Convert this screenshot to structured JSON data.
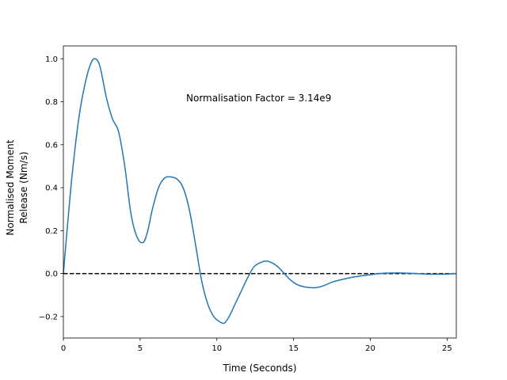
{
  "chart_data": {
    "type": "line",
    "title": "",
    "xlabel": "Time (Seconds)",
    "ylabel": "Normalised Moment Release (Nm/s)",
    "ylabel_lines": [
      "Normalised Moment",
      "Release (Nm/s)"
    ],
    "xlim": [
      0,
      25.6
    ],
    "ylim": [
      -0.3,
      1.06
    ],
    "xticks": [
      0,
      5,
      10,
      15,
      20,
      25
    ],
    "yticks": [
      -0.2,
      0.0,
      0.2,
      0.4,
      0.6,
      0.8,
      1.0
    ],
    "xtick_labels": [
      "0",
      "5",
      "10",
      "15",
      "20",
      "25"
    ],
    "ytick_labels": [
      "−0.2",
      "0.0",
      "0.2",
      "0.4",
      "0.6",
      "0.8",
      "1.0"
    ],
    "grid": false,
    "legend": "none",
    "annotation": "Normalisation Factor = 3.14e9",
    "reference_line": {
      "y": 0,
      "style": "dashed",
      "color": "#000000"
    },
    "series": [
      {
        "color": "#1f77b4",
        "x": [
          0,
          0.3,
          0.6,
          1.0,
          1.4,
          1.8,
          2.1,
          2.4,
          2.8,
          3.2,
          3.6,
          4.0,
          4.4,
          4.8,
          5.2,
          5.5,
          5.8,
          6.2,
          6.6,
          7.0,
          7.4,
          7.8,
          8.2,
          8.6,
          9.0,
          9.4,
          9.8,
          10.2,
          10.5,
          10.8,
          11.2,
          11.6,
          12.0,
          12.4,
          12.8,
          13.2,
          13.6,
          14.0,
          14.4,
          14.8,
          15.2,
          15.6,
          16.0,
          16.5,
          17.0,
          17.5,
          18.0,
          19.0,
          20.0,
          21.0,
          22.0,
          23.0,
          24.0,
          25.0,
          25.6
        ],
        "y": [
          0.0,
          0.25,
          0.48,
          0.72,
          0.88,
          0.98,
          1.0,
          0.96,
          0.82,
          0.72,
          0.66,
          0.5,
          0.28,
          0.17,
          0.145,
          0.2,
          0.3,
          0.4,
          0.445,
          0.45,
          0.44,
          0.4,
          0.3,
          0.14,
          -0.03,
          -0.14,
          -0.2,
          -0.225,
          -0.23,
          -0.2,
          -0.14,
          -0.08,
          -0.02,
          0.03,
          0.05,
          0.058,
          0.05,
          0.03,
          0.0,
          -0.03,
          -0.05,
          -0.06,
          -0.065,
          -0.065,
          -0.055,
          -0.04,
          -0.03,
          -0.015,
          -0.005,
          0.002,
          0.003,
          0.0,
          -0.003,
          -0.002,
          0.0
        ]
      }
    ]
  }
}
